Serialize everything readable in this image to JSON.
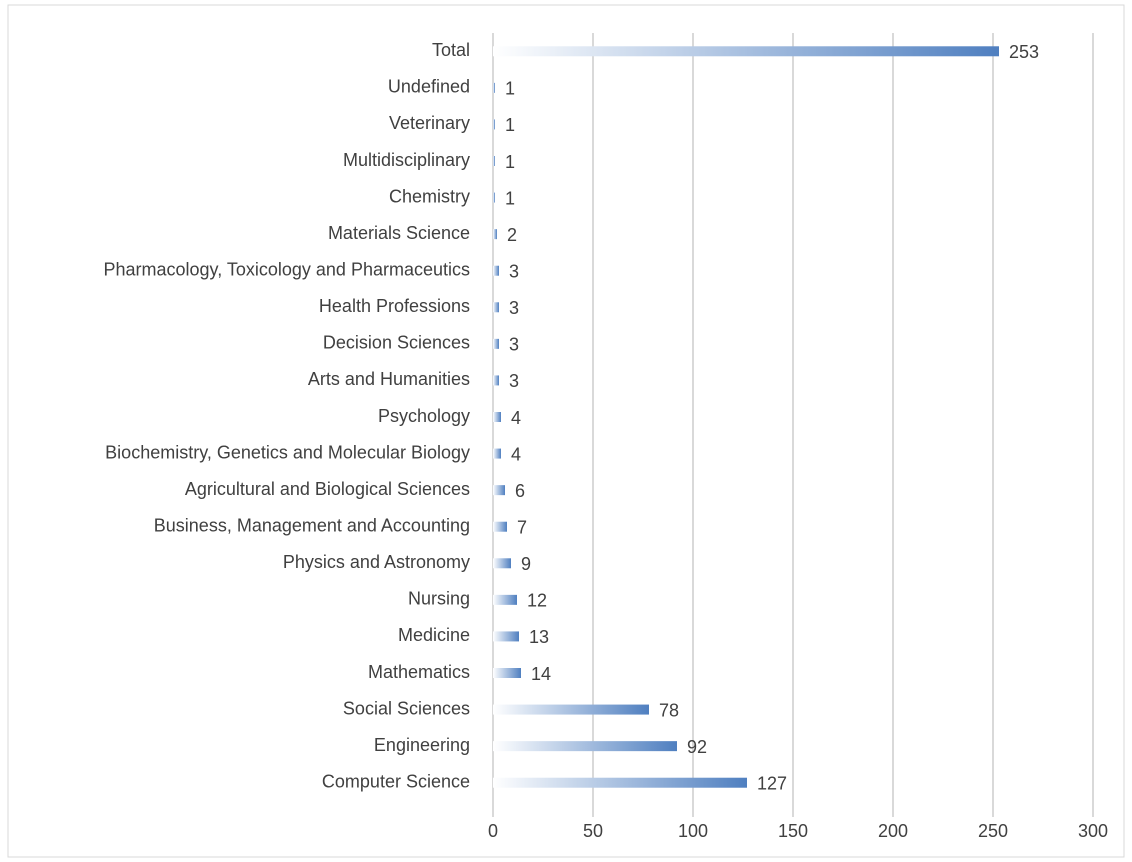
{
  "chart_data": {
    "type": "bar",
    "orientation": "horizontal",
    "categories": [
      "Total",
      "Undefined",
      "Veterinary",
      "Multidisciplinary",
      "Chemistry",
      "Materials Science",
      "Pharmacology, Toxicology and Pharmaceutics",
      "Health Professions",
      "Decision Sciences",
      "Arts and Humanities",
      "Psychology",
      "Biochemistry, Genetics and Molecular Biology",
      "Agricultural and Biological Sciences",
      "Business, Management and Accounting",
      "Physics and Astronomy",
      "Nursing",
      "Medicine",
      "Mathematics",
      "Social Sciences",
      "Engineering",
      "Computer Science"
    ],
    "values": [
      253,
      1,
      1,
      1,
      1,
      2,
      3,
      3,
      3,
      3,
      4,
      4,
      6,
      7,
      9,
      12,
      13,
      14,
      78,
      92,
      127
    ],
    "color": "#4f7fc0",
    "xlim": [
      0,
      300
    ],
    "xticks": [
      0,
      50,
      100,
      150,
      200,
      250,
      300
    ],
    "grid": true
  }
}
